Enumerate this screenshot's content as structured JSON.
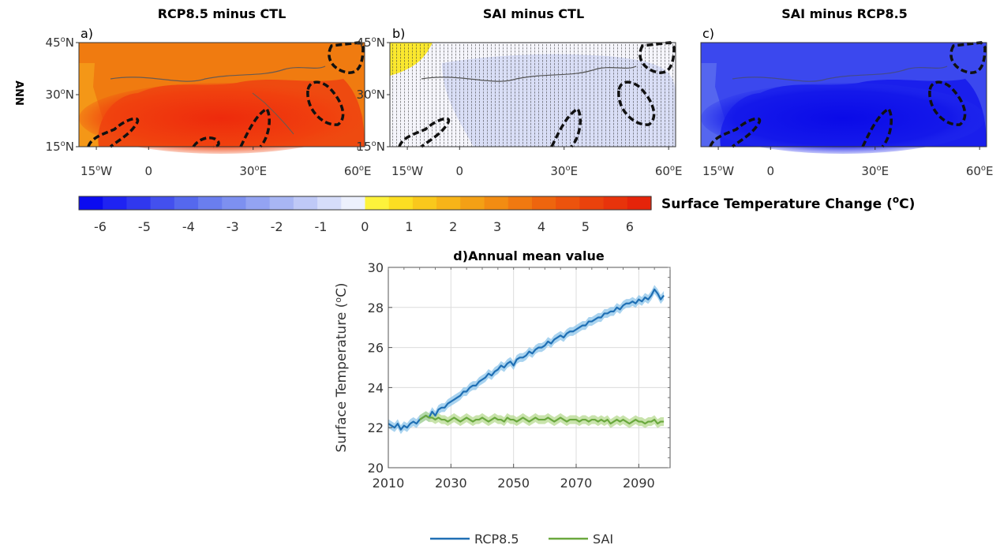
{
  "chart_data": [
    {
      "type": "heatmap",
      "panel": "a)",
      "title": "RCP8.5 minus CTL",
      "row_label": "ANN",
      "y_ticks": [
        "15",
        "30",
        "45"
      ],
      "y_tick_suffix": "N",
      "x_ticks": [
        "15",
        "0",
        "30",
        "60"
      ],
      "x_tick_suffix": [
        "W",
        "",
        "E",
        "E"
      ],
      "lon_range": [
        -20,
        62
      ],
      "lat_range": [
        15,
        45
      ],
      "value_range": [
        3,
        6
      ],
      "stippled": false
    },
    {
      "type": "heatmap",
      "panel": "b)",
      "title": "SAI minus CTL",
      "y_ticks": [
        "15",
        "30",
        "45"
      ],
      "y_tick_suffix": "N",
      "x_ticks": [
        "15",
        "0",
        "30",
        "60"
      ],
      "x_tick_suffix": [
        "W",
        "",
        "E",
        "E"
      ],
      "lon_range": [
        -20,
        62
      ],
      "lat_range": [
        15,
        45
      ],
      "value_range": [
        -0.5,
        0.5
      ],
      "stippled": true
    },
    {
      "type": "heatmap",
      "panel": "c)",
      "title": "SAI minus RCP8.5",
      "y_ticks": [
        "15",
        "30",
        "45"
      ],
      "y_tick_suffix": "N",
      "x_ticks": [
        "15",
        "0",
        "30",
        "60"
      ],
      "x_tick_suffix": [
        "W",
        "",
        "E",
        "E"
      ],
      "lon_range": [
        -20,
        62
      ],
      "lat_range": [
        15,
        45
      ],
      "value_range": [
        -6,
        -3
      ],
      "stippled": false
    },
    {
      "type": "line",
      "panel": "d)",
      "title": "d)Annual mean value",
      "xlabel": "",
      "ylabel": "Surface Temperature (oC)",
      "ylabel_main": "Surface Temperature (",
      "ylabel_sup": "o",
      "ylabel_end": "C)",
      "xlim": [
        2010,
        2100
      ],
      "ylim": [
        20,
        30
      ],
      "x_ticks": [
        2010,
        2030,
        2050,
        2070,
        2090
      ],
      "y_ticks": [
        20,
        22,
        24,
        26,
        28,
        30
      ],
      "grid": true,
      "legend_position": "bottom-center",
      "series": [
        {
          "name": "RCP8.5",
          "color": "#1f6fb4",
          "band_color": "#8cc4ea",
          "x": [
            2010,
            2011,
            2012,
            2013,
            2014,
            2015,
            2016,
            2017,
            2018,
            2019,
            2020,
            2021,
            2022,
            2023,
            2024,
            2025,
            2026,
            2027,
            2028,
            2029,
            2030,
            2031,
            2032,
            2033,
            2034,
            2035,
            2036,
            2037,
            2038,
            2039,
            2040,
            2041,
            2042,
            2043,
            2044,
            2045,
            2046,
            2047,
            2048,
            2049,
            2050,
            2051,
            2052,
            2053,
            2054,
            2055,
            2056,
            2057,
            2058,
            2059,
            2060,
            2061,
            2062,
            2063,
            2064,
            2065,
            2066,
            2067,
            2068,
            2069,
            2070,
            2071,
            2072,
            2073,
            2074,
            2075,
            2076,
            2077,
            2078,
            2079,
            2080,
            2081,
            2082,
            2083,
            2084,
            2085,
            2086,
            2087,
            2088,
            2089,
            2090,
            2091,
            2092,
            2093,
            2094,
            2095,
            2096,
            2097,
            2098
          ],
          "values": [
            22.2,
            22.1,
            22.0,
            22.2,
            21.9,
            22.1,
            22.0,
            22.2,
            22.3,
            22.2,
            22.4,
            22.5,
            22.6,
            22.5,
            22.8,
            22.6,
            22.9,
            23.0,
            23.0,
            23.2,
            23.3,
            23.4,
            23.5,
            23.6,
            23.8,
            23.8,
            24.0,
            24.1,
            24.1,
            24.3,
            24.4,
            24.5,
            24.7,
            24.6,
            24.8,
            24.9,
            25.1,
            25.0,
            25.2,
            25.3,
            25.1,
            25.4,
            25.5,
            25.5,
            25.6,
            25.8,
            25.7,
            25.9,
            26.0,
            26.0,
            26.1,
            26.3,
            26.2,
            26.4,
            26.5,
            26.6,
            26.5,
            26.7,
            26.8,
            26.8,
            26.9,
            27.0,
            27.1,
            27.1,
            27.3,
            27.3,
            27.4,
            27.5,
            27.5,
            27.7,
            27.7,
            27.8,
            27.8,
            28.0,
            27.9,
            28.1,
            28.2,
            28.2,
            28.3,
            28.2,
            28.4,
            28.3,
            28.5,
            28.4,
            28.6,
            28.9,
            28.7,
            28.4,
            28.6
          ]
        },
        {
          "name": "SAI",
          "color": "#6aa83e",
          "band_color": "#b6d98f",
          "x": [
            2020,
            2021,
            2022,
            2023,
            2024,
            2025,
            2026,
            2027,
            2028,
            2029,
            2030,
            2031,
            2032,
            2033,
            2034,
            2035,
            2036,
            2037,
            2038,
            2039,
            2040,
            2041,
            2042,
            2043,
            2044,
            2045,
            2046,
            2047,
            2048,
            2049,
            2050,
            2051,
            2052,
            2053,
            2054,
            2055,
            2056,
            2057,
            2058,
            2059,
            2060,
            2061,
            2062,
            2063,
            2064,
            2065,
            2066,
            2067,
            2068,
            2069,
            2070,
            2071,
            2072,
            2073,
            2074,
            2075,
            2076,
            2077,
            2078,
            2079,
            2080,
            2081,
            2082,
            2083,
            2084,
            2085,
            2086,
            2087,
            2088,
            2089,
            2090,
            2091,
            2092,
            2093,
            2094,
            2095,
            2096,
            2097,
            2098
          ],
          "values": [
            22.4,
            22.5,
            22.6,
            22.5,
            22.5,
            22.4,
            22.5,
            22.4,
            22.4,
            22.3,
            22.4,
            22.5,
            22.4,
            22.3,
            22.4,
            22.5,
            22.4,
            22.3,
            22.4,
            22.4,
            22.5,
            22.4,
            22.3,
            22.4,
            22.5,
            22.4,
            22.4,
            22.3,
            22.5,
            22.4,
            22.4,
            22.3,
            22.4,
            22.5,
            22.4,
            22.3,
            22.4,
            22.5,
            22.4,
            22.4,
            22.4,
            22.5,
            22.4,
            22.3,
            22.4,
            22.5,
            22.4,
            22.3,
            22.4,
            22.4,
            22.4,
            22.3,
            22.4,
            22.4,
            22.3,
            22.4,
            22.4,
            22.3,
            22.4,
            22.3,
            22.4,
            22.2,
            22.3,
            22.4,
            22.3,
            22.4,
            22.3,
            22.2,
            22.3,
            22.4,
            22.3,
            22.3,
            22.2,
            22.3,
            22.3,
            22.4,
            22.2,
            22.3,
            22.3
          ]
        }
      ]
    }
  ],
  "colorbar": {
    "label_main": "Surface Temperature Change (",
    "label_sup": "o",
    "label_end": "C)",
    "ticks": [
      "-6",
      "-5",
      "-4",
      "-3",
      "-2",
      "-1",
      "0",
      "1",
      "2",
      "3",
      "4",
      "5",
      "6"
    ],
    "negative_colors": [
      "#0b0bf0",
      "#1f23f2",
      "#3038ef",
      "#4350ee",
      "#5568ee",
      "#6a7eef",
      "#7d90f0",
      "#93a3f2",
      "#a8b6f4",
      "#bfc9f7",
      "#d6ddfa",
      "#ecf0fd"
    ],
    "positive_colors": [
      "#fdf23b",
      "#fcde22",
      "#f9c81c",
      "#f7b418",
      "#f4a015",
      "#f28c12",
      "#f07910",
      "#ee650e",
      "#ec530d",
      "#ea420c",
      "#e8330b",
      "#e5240a"
    ]
  }
}
